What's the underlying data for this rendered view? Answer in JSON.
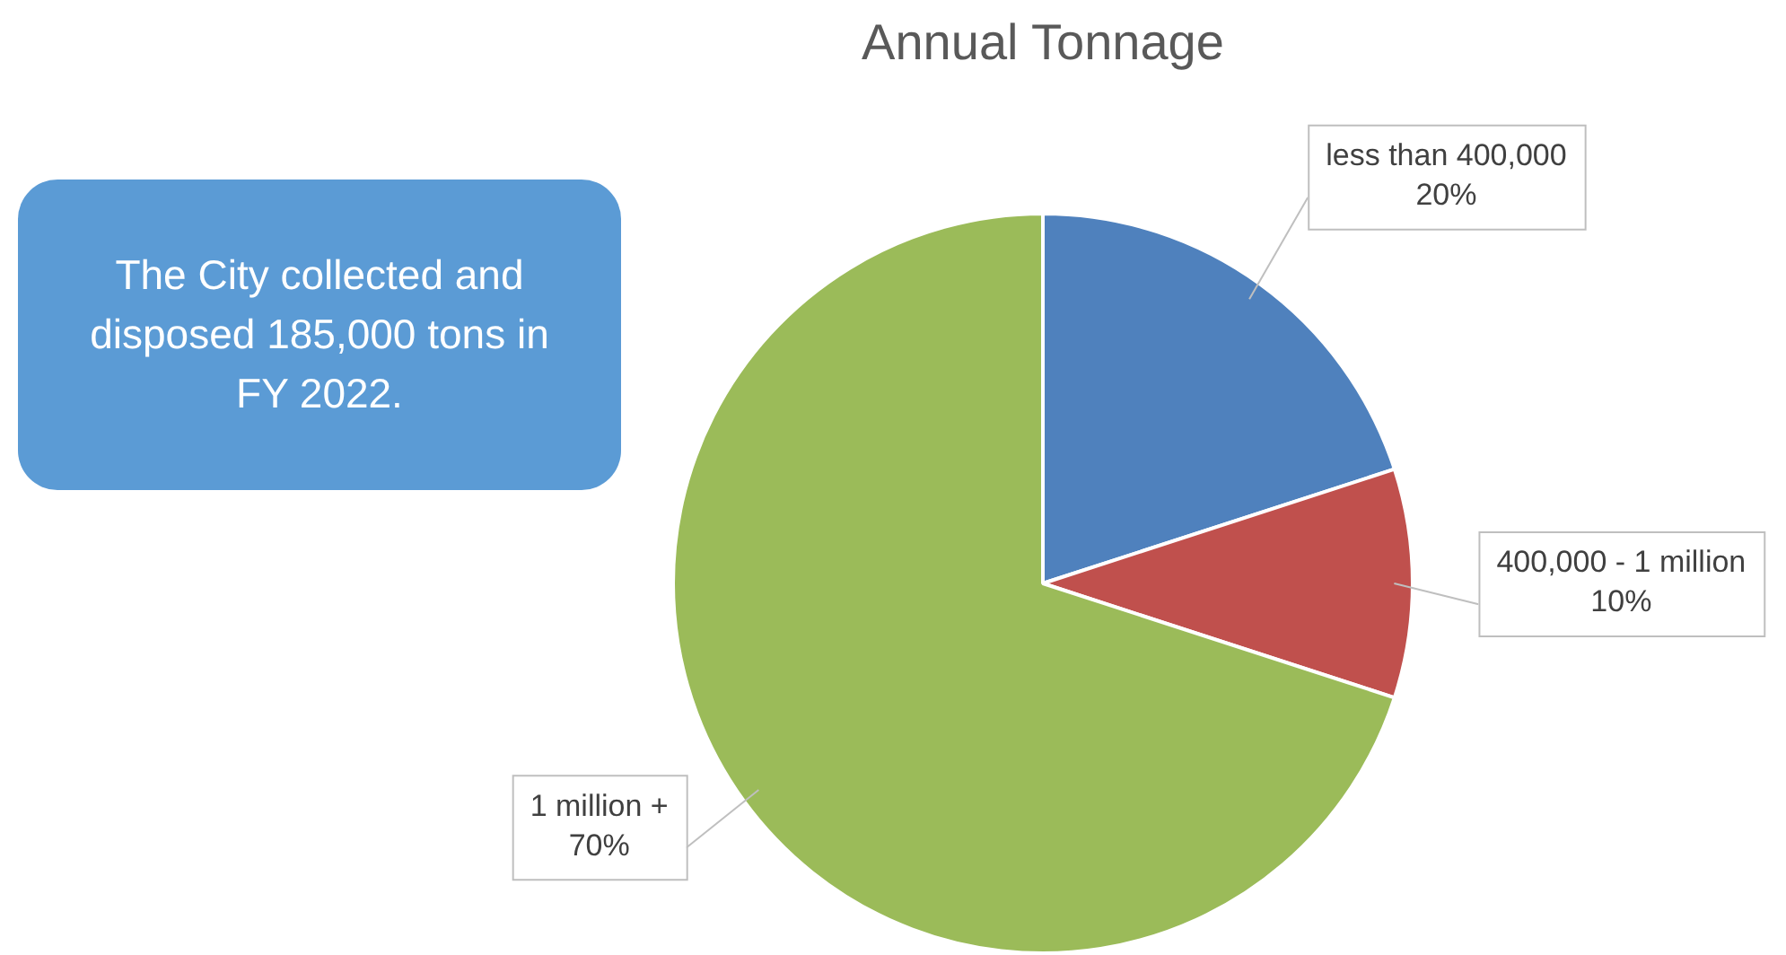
{
  "chart_data": {
    "type": "pie",
    "title": "Annual Tonnage",
    "categories": [
      "less than 400,000",
      "400,000 - 1 million",
      "1 million +"
    ],
    "values": [
      20,
      10,
      70
    ],
    "colors": [
      "#4f81bd",
      "#c0504d",
      "#9bbb59"
    ],
    "value_labels": [
      "20%",
      "10%",
      "70%"
    ],
    "legend": false,
    "annotations": [
      "The City collected and disposed 185,000 tons in FY 2022."
    ]
  }
}
